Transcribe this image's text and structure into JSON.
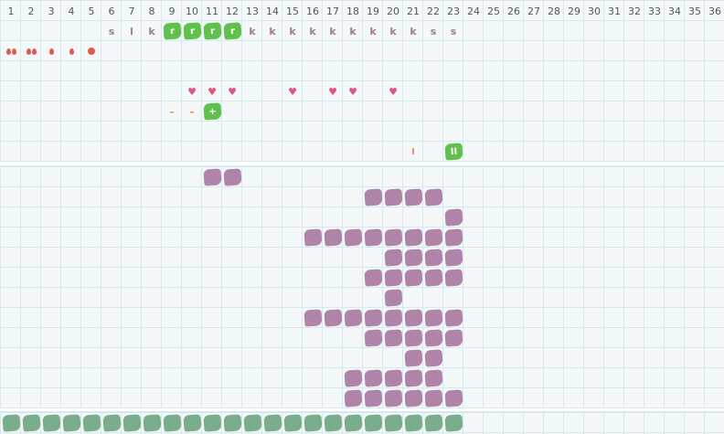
{
  "columns": [
    "1",
    "2",
    "3",
    "4",
    "5",
    "6",
    "7",
    "8",
    "9",
    "10",
    "11",
    "12",
    "13",
    "14",
    "15",
    "16",
    "17",
    "18",
    "19",
    "20",
    "21",
    "22",
    "23",
    "24",
    "25",
    "26",
    "27",
    "28",
    "29",
    "30",
    "31",
    "32",
    "33",
    "34",
    "35",
    "36"
  ],
  "colors": {
    "background": "#f4f8f9",
    "grid": "#d5e9f2",
    "green": "#5fc04b",
    "purple": "#b083a8",
    "teal": "#79ad8b",
    "heart": "#e05580",
    "drop": "#e05a55",
    "orange": "#f08a5a",
    "letter": "#a0789a"
  },
  "top_rows": [
    [
      {
        "col": 6,
        "kind": "letter",
        "text": "s"
      },
      {
        "col": 7,
        "kind": "letter",
        "text": "l"
      },
      {
        "col": 8,
        "kind": "letter",
        "text": "k"
      },
      {
        "col": 9,
        "kind": "green",
        "text": "r"
      },
      {
        "col": 10,
        "kind": "green",
        "text": "r"
      },
      {
        "col": 11,
        "kind": "green",
        "text": "r"
      },
      {
        "col": 12,
        "kind": "green",
        "text": "r"
      },
      {
        "col": 13,
        "kind": "letter",
        "text": "k"
      },
      {
        "col": 14,
        "kind": "letter",
        "text": "k"
      },
      {
        "col": 15,
        "kind": "letter",
        "text": "k"
      },
      {
        "col": 16,
        "kind": "letter",
        "text": "k"
      },
      {
        "col": 17,
        "kind": "letter",
        "text": "k"
      },
      {
        "col": 18,
        "kind": "letter",
        "text": "k"
      },
      {
        "col": 19,
        "kind": "letter",
        "text": "k"
      },
      {
        "col": 20,
        "kind": "letter",
        "text": "k"
      },
      {
        "col": 21,
        "kind": "letter",
        "text": "k"
      },
      {
        "col": 22,
        "kind": "letter",
        "text": "s"
      },
      {
        "col": 23,
        "kind": "letter",
        "text": "s"
      }
    ],
    [
      {
        "col": 1,
        "kind": "drop2"
      },
      {
        "col": 2,
        "kind": "drop2"
      },
      {
        "col": 3,
        "kind": "drop"
      },
      {
        "col": 4,
        "kind": "drop"
      },
      {
        "col": 5,
        "kind": "dot"
      }
    ],
    [],
    [
      {
        "col": 10,
        "kind": "heart",
        "text": "♥"
      },
      {
        "col": 11,
        "kind": "heart",
        "text": "♥"
      },
      {
        "col": 12,
        "kind": "heart",
        "text": "♥"
      },
      {
        "col": 15,
        "kind": "heart",
        "text": "♥"
      },
      {
        "col": 17,
        "kind": "heart",
        "text": "♥"
      },
      {
        "col": 18,
        "kind": "heart",
        "text": "♥"
      },
      {
        "col": 20,
        "kind": "heart",
        "text": "♥"
      }
    ],
    [
      {
        "col": 9,
        "kind": "dash",
        "text": "–"
      },
      {
        "col": 10,
        "kind": "dash",
        "text": "–"
      },
      {
        "col": 11,
        "kind": "green",
        "text": "+"
      }
    ],
    [],
    [
      {
        "col": 21,
        "kind": "bar",
        "text": "I"
      },
      {
        "col": 23,
        "kind": "green",
        "text": "II"
      }
    ]
  ],
  "lower_rows": [
    [
      11,
      12
    ],
    [
      19,
      20,
      21,
      22
    ],
    [
      23
    ],
    [
      16,
      17,
      18,
      19,
      20,
      21,
      22,
      23
    ],
    [
      20,
      21,
      22,
      23
    ],
    [
      19,
      20,
      21,
      22,
      23
    ],
    [
      20
    ],
    [
      16,
      17,
      18,
      19,
      20,
      21,
      22,
      23
    ],
    [
      19,
      20,
      21,
      22,
      23
    ],
    [
      21,
      22
    ],
    [
      18,
      19,
      20,
      21,
      22
    ],
    [
      18,
      19,
      20,
      21,
      22,
      23
    ]
  ],
  "bottom_row": [
    1,
    2,
    3,
    4,
    5,
    6,
    7,
    8,
    9,
    10,
    11,
    12,
    13,
    14,
    15,
    16,
    17,
    18,
    19,
    20,
    21,
    22,
    23
  ]
}
